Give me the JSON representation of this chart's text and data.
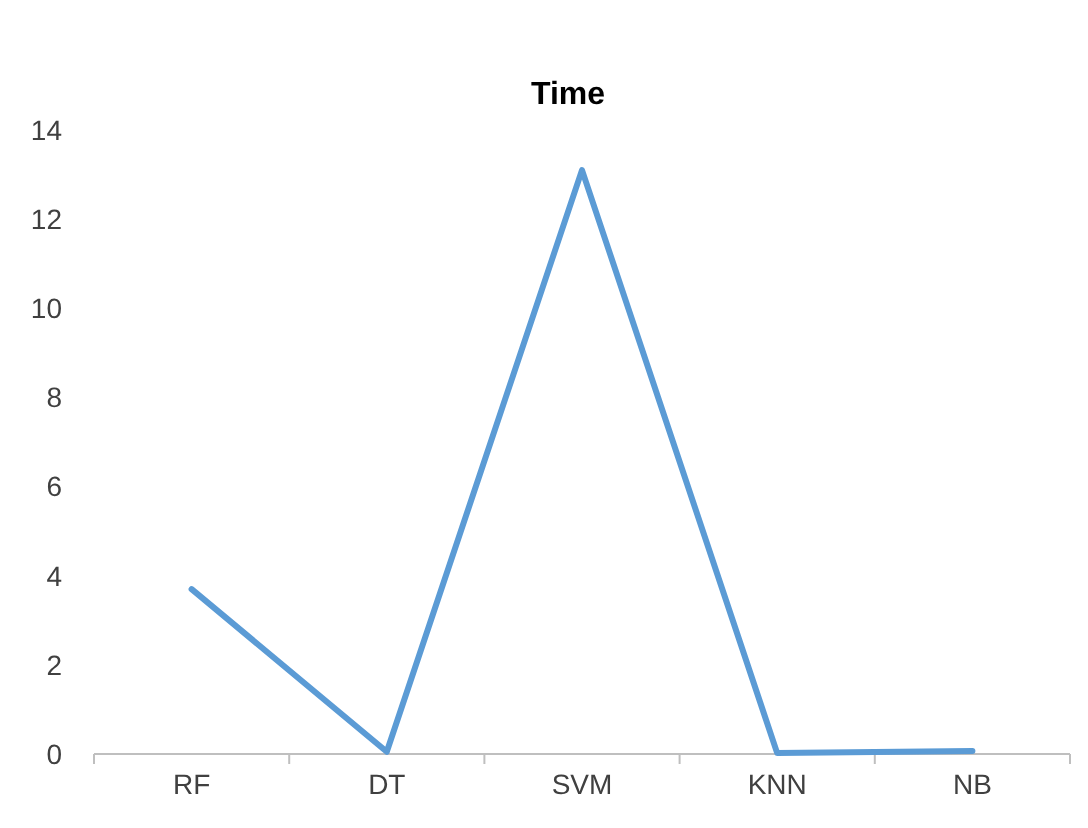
{
  "chart_data": {
    "type": "line",
    "title": "Time",
    "categories": [
      "RF",
      "DT",
      "SVM",
      "KNN",
      "NB"
    ],
    "series": [
      {
        "color": "#5b9bd5",
        "values": [
          3.7,
          0.05,
          13.1,
          0.02,
          0.07
        ]
      }
    ],
    "ylim": [
      0,
      14
    ],
    "yticks": [
      0,
      2,
      4,
      6,
      8,
      10,
      12,
      14
    ],
    "grid": false,
    "marker": "none",
    "line_style": "solid"
  }
}
